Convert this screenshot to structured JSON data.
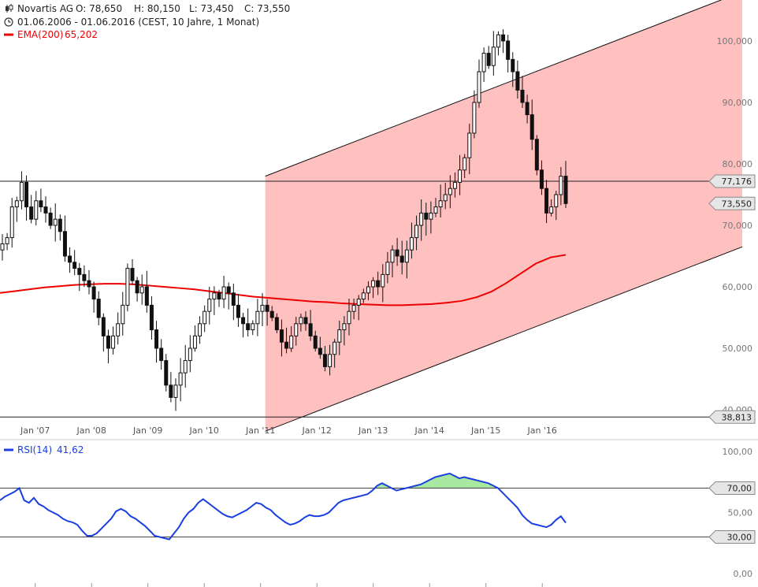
{
  "header": {
    "name": "Novartis AG",
    "open": "O: 78,650",
    "high": "H: 80,150",
    "low": "L: 73,450",
    "close": "C: 73,550",
    "range": "01.06.2006 - 01.06.2016 (CEST, 10 Jahre, 1 Monat)",
    "ema_label": "EMA(200)",
    "ema_value": "65,202"
  },
  "rsi_header": {
    "label": "RSI(14)",
    "value": "41,62"
  },
  "price_tags": {
    "hline_upper": "77,176",
    "last_price": "73,550",
    "hline_lower": "38,813"
  },
  "rsi_tags": {
    "upper": "70,00",
    "lower": "30,00"
  },
  "colors": {
    "channel_fill": "#ffc0c0",
    "ema_line": "#ee0000",
    "rsi_line": "#1a3fe0",
    "rsi_fill": "#a8e8a0",
    "candle_body": "#111111"
  },
  "icons": {
    "chart_type": "candlestick-icon",
    "range": "clock-icon"
  },
  "chart_data": [
    {
      "type": "candlestick",
      "title": "Novartis AG",
      "x_ticks": [
        "Jan '07",
        "Jan '08",
        "Jan '09",
        "Jan '10",
        "Jan '11",
        "Jan '12",
        "Jan '13",
        "Jan '14",
        "Jan '15",
        "Jan '16"
      ],
      "y_ticks": [
        "40,000",
        "50,000",
        "60,000",
        "70,000",
        "80,000",
        "90,000",
        "100,000"
      ],
      "y_tick_values": [
        40,
        50,
        60,
        70,
        80,
        90,
        100
      ],
      "ylim": [
        37.5,
        104
      ],
      "xlim": [
        "2006-06",
        "2016-06"
      ],
      "close": [
        67,
        68,
        73,
        74,
        77,
        73,
        71,
        74,
        73,
        72,
        70,
        71,
        69,
        65,
        64,
        63,
        62,
        61,
        60,
        58,
        55,
        52,
        50,
        52,
        54,
        57,
        63,
        61,
        59,
        60,
        57,
        53,
        50,
        48,
        44,
        42,
        44,
        46,
        48,
        50,
        52,
        54,
        56,
        58,
        59,
        58,
        60,
        59,
        57,
        55,
        54,
        53,
        54,
        56,
        57,
        56,
        55,
        53,
        51,
        50,
        52,
        54,
        55,
        54,
        52,
        50,
        49,
        47,
        49,
        51,
        53,
        54,
        56,
        57,
        58,
        59,
        60,
        61,
        60,
        62,
        64,
        66,
        65,
        64,
        66,
        68,
        70,
        72,
        71,
        72,
        73,
        74,
        75,
        76,
        77,
        79,
        81,
        85,
        90,
        95,
        98,
        96,
        99,
        101,
        100,
        97,
        95,
        92,
        90,
        88,
        84,
        79,
        76,
        72,
        73,
        75,
        78,
        73.55
      ],
      "series": [
        {
          "name": "EMA(200)",
          "values": [
            59,
            59.3,
            59.6,
            59.9,
            60.1,
            60.3,
            60.4,
            60.5,
            60.5,
            60.4,
            60.2,
            60,
            59.8,
            59.6,
            59.3,
            59,
            58.7,
            58.4,
            58.2,
            58,
            57.8,
            57.6,
            57.5,
            57.3,
            57.2,
            57.1,
            57,
            57,
            57.1,
            57.2,
            57.4,
            57.7,
            58.3,
            59.2,
            60.6,
            62.2,
            63.8,
            64.8,
            65.2
          ]
        }
      ],
      "annotations": {
        "horizontal_lines": [
          77.176,
          38.813
        ],
        "channel": {
          "start": "2011-02",
          "end": "2016-06",
          "upper": [
            78,
            108
          ],
          "lower": [
            36.5,
            66.5
          ]
        }
      }
    },
    {
      "type": "line",
      "title": "RSI(14)",
      "y_ticks": [
        "0,00",
        "30,00",
        "50,00",
        "70,00",
        "100,00"
      ],
      "y_tick_values": [
        0,
        30,
        50,
        70,
        100
      ],
      "ylim": [
        0,
        100
      ],
      "thresholds": [
        30,
        70
      ],
      "series": [
        {
          "name": "RSI(14)",
          "values": [
            60,
            63,
            65,
            67,
            70,
            60,
            58,
            62,
            57,
            55,
            52,
            50,
            48,
            45,
            43,
            42,
            40,
            35,
            31,
            31,
            33,
            37,
            41,
            45,
            51,
            53,
            51,
            47,
            45,
            42,
            39,
            35,
            31,
            30,
            29,
            28,
            33,
            38,
            45,
            50,
            53,
            58,
            61,
            58,
            55,
            52,
            49,
            47,
            46,
            48,
            50,
            52,
            55,
            58,
            57,
            54,
            52,
            48,
            45,
            42,
            40,
            41,
            43,
            46,
            48,
            47,
            47,
            48,
            50,
            54,
            58,
            60,
            61,
            62,
            63,
            64,
            65,
            68,
            72,
            74,
            72,
            70,
            68,
            69,
            70,
            71,
            72,
            73,
            75,
            77,
            79,
            80,
            81,
            82,
            80,
            78,
            79,
            78,
            77,
            76,
            75,
            74,
            72,
            70,
            66,
            62,
            58,
            54,
            48,
            44,
            41,
            40,
            39,
            38,
            40,
            44,
            47,
            41.62
          ]
        }
      ]
    }
  ]
}
